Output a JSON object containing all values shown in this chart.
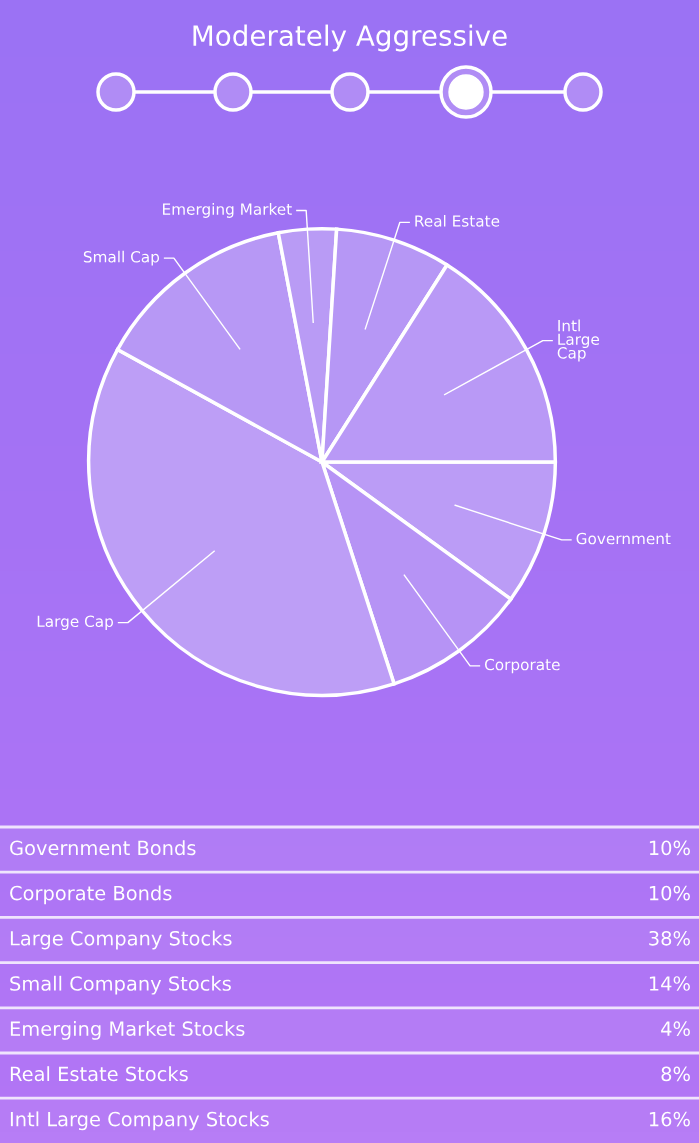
{
  "chart_data": {
    "type": "pie",
    "title": "Moderately Aggressive",
    "categories": [
      "Government",
      "Corporate",
      "Large Cap",
      "Small Cap",
      "Emerging Market",
      "Real Estate",
      "Intl\nLarge\nCap"
    ],
    "values": [
      10,
      10,
      38,
      14,
      4,
      8,
      16
    ],
    "colors": [
      "#bb9cf6",
      "#b693f5",
      "#bd9ef6",
      "#b798f5",
      "#b99bf5",
      "#b697f5",
      "#b999f6"
    ],
    "annotations": [
      "Government Bonds",
      "10%",
      "Corporate Bonds",
      "10%",
      "Large Company Stocks",
      "38%",
      "Small Company Stocks",
      "14%",
      "Emerging Market Stocks",
      "4%",
      "Real Estate Stocks",
      "8%",
      "Intl Large Company Stocks",
      "16%"
    ]
  }
}
